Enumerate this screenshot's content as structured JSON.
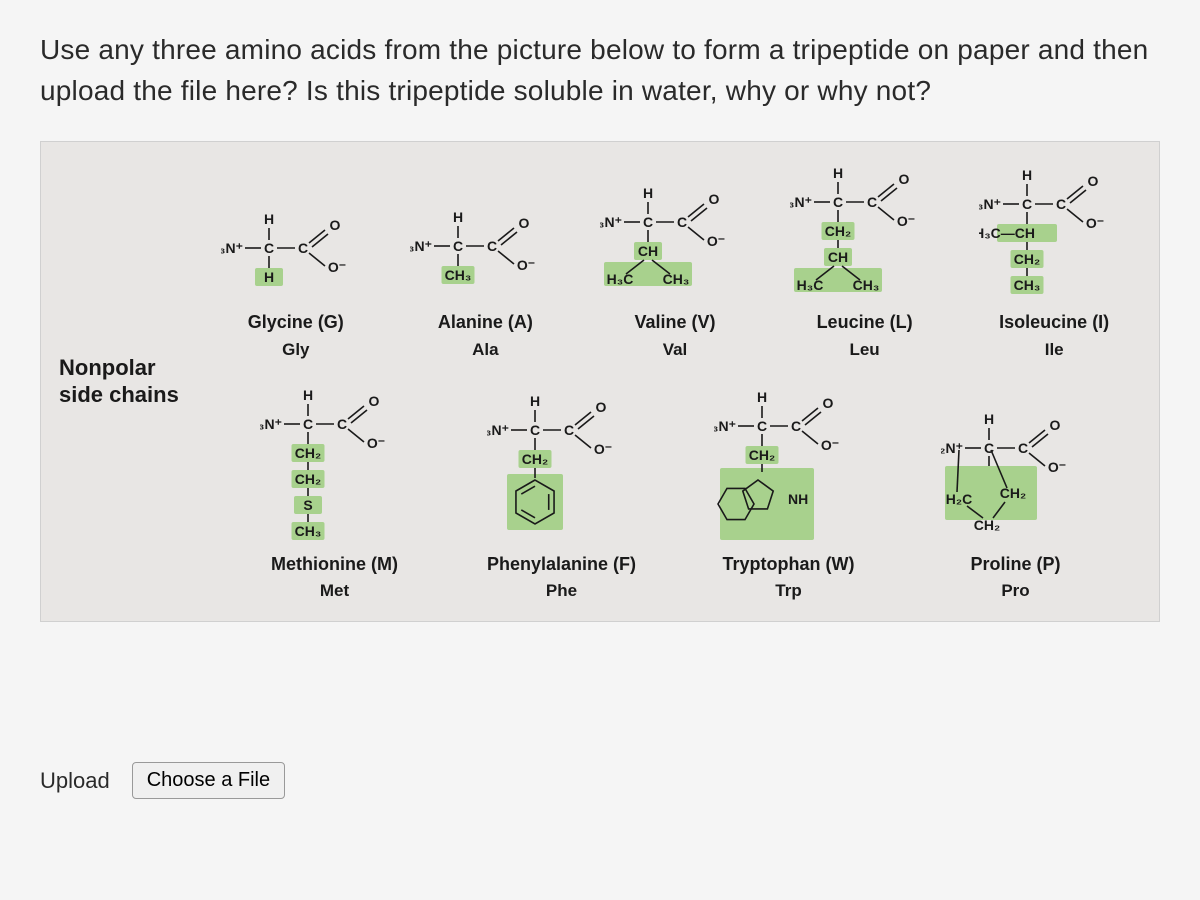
{
  "question_text": "Use any three amino acids from the picture below to form a tripeptide on paper and then upload the file here? Is this tripeptide soluble in water, why or why not?",
  "side_label_line1": "Nonpolar",
  "side_label_line2": "side chains",
  "style": {
    "highlight_color": "#a8d18d",
    "bond_color": "#1a1a1a",
    "text_color": "#1a1a1a",
    "panel_bg": "#e8e6e4",
    "font_bold_size": 18,
    "struct_font_size": 14
  },
  "backbone": {
    "amine": "H₃N⁺",
    "carboxyl_O": "O",
    "carboxyl_Om": "O⁻",
    "alpha_H": "H",
    "C": "C"
  },
  "amino_acids_row1": [
    {
      "name": "Glycine (G)",
      "abbr": "Gly",
      "sidechain": [
        {
          "t": "H",
          "hl": true
        }
      ],
      "sidechain_w": 24,
      "sidechain_h": 18
    },
    {
      "name": "Alanine (A)",
      "abbr": "Ala",
      "sidechain": [
        {
          "t": "CH₃",
          "hl": true
        }
      ],
      "sidechain_w": 40,
      "sidechain_h": 20
    },
    {
      "name": "Valine (V)",
      "abbr": "Val",
      "sidechain": [
        {
          "t": "CH",
          "hl": true
        },
        {
          "branch": [
            "H₃C",
            "CH₃"
          ],
          "hl": true
        }
      ],
      "sidechain_w": 90,
      "sidechain_h": 44
    },
    {
      "name": "Leucine (L)",
      "abbr": "Leu",
      "sidechain": [
        {
          "t": "CH₂",
          "hl": true
        },
        {
          "t": "CH",
          "hl": true
        },
        {
          "branch": [
            "H₃C",
            "CH₃"
          ],
          "hl": true
        }
      ],
      "sidechain_w": 90,
      "sidechain_h": 64
    },
    {
      "name": "Isoleucine (I)",
      "abbr": "Ile",
      "sidechain": [
        {
          "t": "H₃C—CH",
          "hl": true,
          "left": true
        },
        {
          "t": "CH₂",
          "hl": true
        },
        {
          "t": "CH₃",
          "hl": true
        }
      ],
      "sidechain_w": 76,
      "sidechain_h": 62
    }
  ],
  "amino_acids_row2": [
    {
      "name": "Methionine (M)",
      "abbr": "Met",
      "sidechain": [
        {
          "t": "CH₂",
          "hl": true
        },
        {
          "t": "CH₂",
          "hl": true
        },
        {
          "t": "S",
          "hl": true
        },
        {
          "t": "CH₃",
          "hl": true
        }
      ],
      "sidechain_w": 42,
      "sidechain_h": 80
    },
    {
      "name": "Phenylalanine (F)",
      "abbr": "Phe",
      "sidechain": [
        {
          "t": "CH₂",
          "hl": true
        },
        {
          "ring": "benzene",
          "hl": true
        }
      ],
      "sidechain_w": 60,
      "sidechain_h": 78
    },
    {
      "name": "Tryptophan (W)",
      "abbr": "Trp",
      "sidechain": [
        {
          "t": "CH₂",
          "hl": true
        },
        {
          "ring": "indole",
          "hl": true,
          "label": "NH"
        }
      ],
      "sidechain_w": 90,
      "sidechain_h": 82
    },
    {
      "name": "Proline (P)",
      "abbr": "Pro",
      "amine_override": "H₂N⁺",
      "sidechain": [
        {
          "proline": true,
          "hl": true,
          "labels": [
            "H₂C",
            "CH₂",
            "CH₂"
          ]
        }
      ],
      "sidechain_w": 90,
      "sidechain_h": 60
    }
  ],
  "upload": {
    "label": "Upload",
    "button": "Choose a File"
  }
}
